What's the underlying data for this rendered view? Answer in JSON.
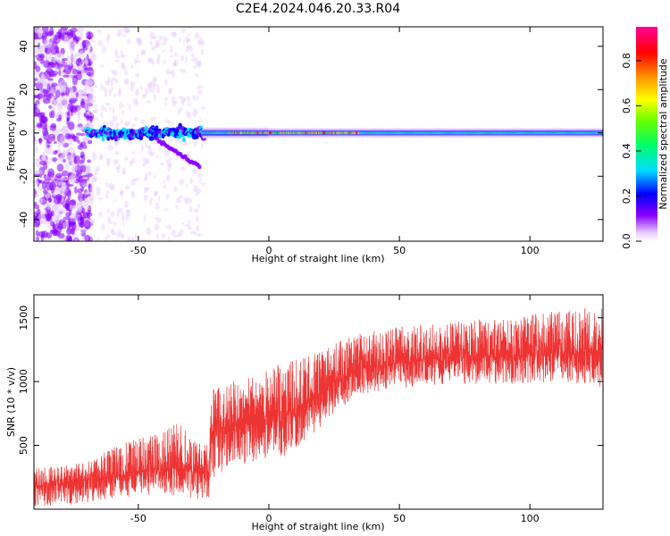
{
  "figure": {
    "title": "C2E4.2024.046.20.33.R04"
  },
  "chart_data": [
    {
      "type": "heatmap",
      "xlabel": "Height of straight line (km)",
      "ylabel": "Frequency (Hz)",
      "xlim": [
        -90,
        128
      ],
      "ylim": [
        -50,
        49
      ],
      "xticks": [
        -50,
        0,
        50,
        100
      ],
      "yticks": [
        -40,
        -20,
        0,
        20,
        40
      ],
      "colorbar": {
        "label": "Normalized spectral amplitude",
        "range": [
          0.0,
          0.95
        ],
        "ticks": [
          0.0,
          0.2,
          0.4,
          0.6,
          0.8
        ],
        "colormap": "rainbow (white - violet - blue - cyan - green - yellow - orange - red - magenta)"
      },
      "features": [
        {
          "region": "x -90 to -70",
          "description": "broadband noise, amplitude about 0.1-0.2 across all frequencies"
        },
        {
          "region": "x -70 to -25",
          "description": "scattered weak noise with diffuse band around 0 Hz, amplitude up to about 0.4"
        },
        {
          "region": "x -47 to -25",
          "description": "branch curving down from 0 Hz to about -16 Hz, amplitude about 0.15"
        },
        {
          "region": "x -25 to 128",
          "description": "continuous narrow band centred on 0 Hz, amplitude about 0.4, peaks 0.8-0.9 near x -15 to 35"
        }
      ]
    },
    {
      "type": "line",
      "xlabel": "Height of straight line (km)",
      "ylabel": "SNR (10 * v/v)",
      "xlim": [
        -90,
        128
      ],
      "ylim": [
        0,
        1680
      ],
      "xticks": [
        -50,
        0,
        50,
        100
      ],
      "yticks": [
        500,
        1000,
        1500
      ],
      "series": [
        {
          "color": "#ee3333",
          "envelope": [
            {
              "x": -90,
              "lo": 20,
              "mid": 180,
              "hi": 320
            },
            {
              "x": -80,
              "lo": 30,
              "mid": 190,
              "hi": 340
            },
            {
              "x": -70,
              "lo": 50,
              "mid": 230,
              "hi": 380
            },
            {
              "x": -60,
              "lo": 80,
              "mid": 260,
              "hi": 480
            },
            {
              "x": -50,
              "lo": 100,
              "mid": 290,
              "hi": 560
            },
            {
              "x": -40,
              "lo": 120,
              "mid": 310,
              "hi": 620
            },
            {
              "x": -33,
              "lo": 100,
              "mid": 330,
              "hi": 700
            },
            {
              "x": -30,
              "lo": 80,
              "mid": 300,
              "hi": 550
            },
            {
              "x": -23,
              "lo": 80,
              "mid": 280,
              "hi": 500
            },
            {
              "x": -22,
              "lo": 200,
              "mid": 600,
              "hi": 950
            },
            {
              "x": -15,
              "lo": 300,
              "mid": 660,
              "hi": 1000
            },
            {
              "x": -5,
              "lo": 380,
              "mid": 700,
              "hi": 1050
            },
            {
              "x": 5,
              "lo": 400,
              "mid": 720,
              "hi": 1150
            },
            {
              "x": 15,
              "lo": 550,
              "mid": 830,
              "hi": 1200
            },
            {
              "x": 25,
              "lo": 750,
              "mid": 1000,
              "hi": 1300
            },
            {
              "x": 35,
              "lo": 900,
              "mid": 1100,
              "hi": 1380
            },
            {
              "x": 50,
              "lo": 950,
              "mid": 1150,
              "hi": 1430
            },
            {
              "x": 70,
              "lo": 980,
              "mid": 1190,
              "hi": 1470
            },
            {
              "x": 90,
              "lo": 980,
              "mid": 1200,
              "hi": 1500
            },
            {
              "x": 110,
              "lo": 1000,
              "mid": 1220,
              "hi": 1550
            },
            {
              "x": 128,
              "lo": 950,
              "mid": 1240,
              "hi": 1600
            }
          ]
        }
      ]
    }
  ]
}
